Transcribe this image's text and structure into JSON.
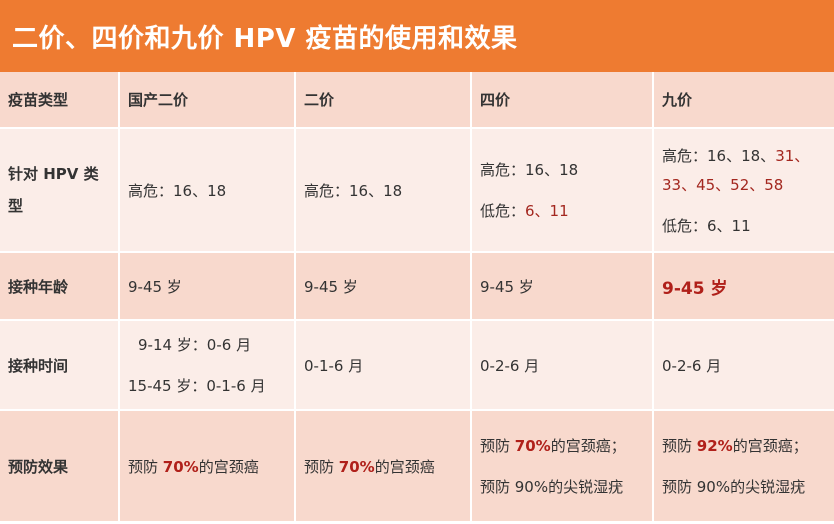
{
  "title": "二价、四价和九价 HPV 疫苗的使用和效果",
  "colors": {
    "title_bg": "#ee7b31",
    "row_dark": "#f8d9cd",
    "row_light": "#fbede8",
    "highlight_red": "#a3271f"
  },
  "header": {
    "c0": "疫苗类型",
    "c1": "国产二价",
    "c2": "二价",
    "c3": "四价",
    "c4": "九价"
  },
  "hpv_types": {
    "label": "针对 HPV 类型",
    "domestic_bivalent": "高危：16、18",
    "bivalent": "高危：16、18",
    "quadrivalent": {
      "high_risk": "高危：16、18",
      "low_risk_prefix": "低危：",
      "low_risk_values": "6、11"
    },
    "nonavalent": {
      "high_risk_prefix": "高危：16、18、",
      "high_risk_extra_1": "31、",
      "high_risk_extra_2": "33、45、52、58",
      "low_risk": "低危：6、11"
    }
  },
  "age": {
    "label": "接种年龄",
    "domestic_bivalent": "9-45 岁",
    "bivalent": "9-45 岁",
    "quadrivalent": "9-45 岁",
    "nonavalent": "9-45 岁"
  },
  "schedule": {
    "label": "接种时间",
    "domestic_bivalent_line1": "9-14 岁：0-6 月",
    "domestic_bivalent_line2": "15-45 岁：0-1-6 月",
    "bivalent": "0-1-6 月",
    "quadrivalent": "0-2-6 月",
    "nonavalent": "0-2-6 月"
  },
  "efficacy": {
    "label": "预防效果",
    "prefix": "预防 ",
    "cervical_suffix": "的宫颈癌",
    "cervical_suffix_semicolon": "的宫颈癌；",
    "domestic_bivalent_pct": "70%",
    "bivalent_pct": "70%",
    "quadrivalent_pct": "70%",
    "nonavalent_pct": "92%",
    "warts_line": "预防 90%的尖锐湿疣"
  }
}
